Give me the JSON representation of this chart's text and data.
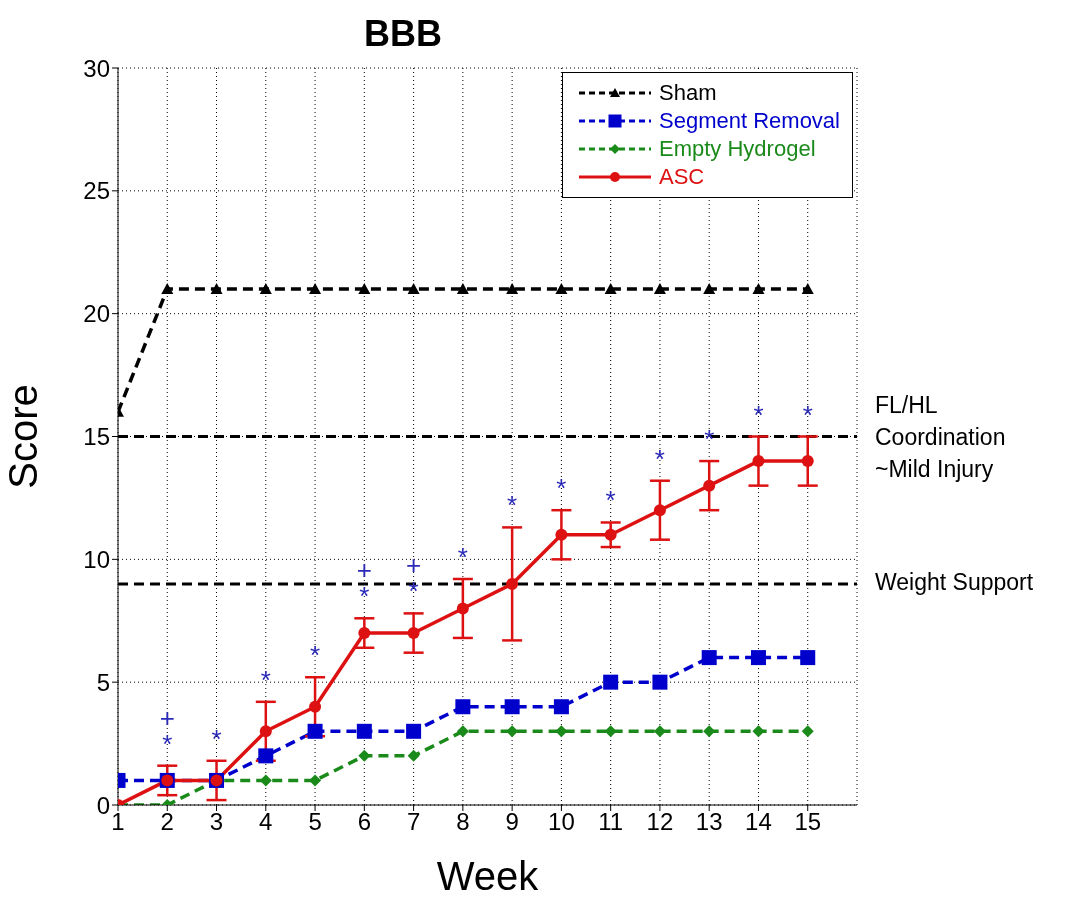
{
  "chart_data": {
    "type": "line",
    "title": "BBB",
    "xlabel": "Week",
    "ylabel": "Score",
    "x": [
      1,
      2,
      3,
      4,
      5,
      6,
      7,
      8,
      9,
      10,
      11,
      12,
      13,
      14,
      15
    ],
    "xlim": [
      1,
      16
    ],
    "xticks": [
      1,
      2,
      3,
      4,
      5,
      6,
      7,
      8,
      9,
      10,
      11,
      12,
      13,
      14,
      15
    ],
    "ylim": [
      0,
      30
    ],
    "yticks": [
      0,
      5,
      10,
      15,
      20,
      25,
      30
    ],
    "grid": true,
    "legend": "top right",
    "line_style": "dashed",
    "series": [
      {
        "name": "Sham",
        "color": "#000000",
        "marker": "triangle",
        "values": [
          16,
          21,
          21,
          21,
          21,
          21,
          21,
          21,
          21,
          21,
          21,
          21,
          21,
          21,
          21
        ]
      },
      {
        "name": "Segment Removal",
        "color": "#0000cc",
        "marker": "square",
        "values": [
          1,
          1,
          1,
          2,
          3,
          3,
          3,
          4,
          4,
          4,
          5,
          5,
          6,
          6,
          6
        ]
      },
      {
        "name": "Empty Hydrogel",
        "color": "#1a8a1a",
        "marker": "diamond",
        "values": [
          0,
          0,
          1,
          1,
          1,
          2,
          2,
          3,
          3,
          3,
          3,
          3,
          3,
          3,
          3
        ]
      },
      {
        "name": "ASC",
        "color": "#dd1111",
        "marker": "circle",
        "line_style": "solid",
        "values": [
          0,
          1,
          1,
          3,
          4,
          7,
          7,
          8,
          9,
          11,
          11,
          12,
          13,
          14,
          14
        ],
        "errors": [
          null,
          0.6,
          0.8,
          1.2,
          1.2,
          0.6,
          0.8,
          1.2,
          2.3,
          1,
          0.5,
          1.2,
          1,
          1,
          1
        ]
      }
    ],
    "ref_lines": [
      {
        "axis": "y",
        "value": 15,
        "label": "FL/HL Coordination ~Mild Injury",
        "color": "#000000",
        "line_style": "dashed"
      },
      {
        "axis": "y",
        "value": 9,
        "label": "Weight Support",
        "color": "#000000",
        "line_style": "dashed"
      }
    ],
    "annotations": [
      {
        "text": "*",
        "x": 2,
        "y": 1
      },
      {
        "text": "+",
        "x": 2,
        "y": 1
      },
      {
        "text": "*",
        "x": 3,
        "y": 1
      },
      {
        "text": "*",
        "x": 4,
        "y": 3
      },
      {
        "text": "*",
        "x": 5,
        "y": 4
      },
      {
        "text": "*",
        "x": 6,
        "y": 7
      },
      {
        "text": "+",
        "x": 6,
        "y": 7
      },
      {
        "text": "*",
        "x": 7,
        "y": 7
      },
      {
        "text": "+",
        "x": 7,
        "y": 7
      },
      {
        "text": "*",
        "x": 8,
        "y": 8
      },
      {
        "text": "*",
        "x": 9,
        "y": 9
      },
      {
        "text": "*",
        "x": 10,
        "y": 11
      },
      {
        "text": "*",
        "x": 11,
        "y": 11
      },
      {
        "text": "*",
        "x": 12,
        "y": 12
      },
      {
        "text": "*",
        "x": 13,
        "y": 13
      },
      {
        "text": "*",
        "x": 14,
        "y": 14
      },
      {
        "text": "*",
        "x": 15,
        "y": 14
      }
    ]
  }
}
